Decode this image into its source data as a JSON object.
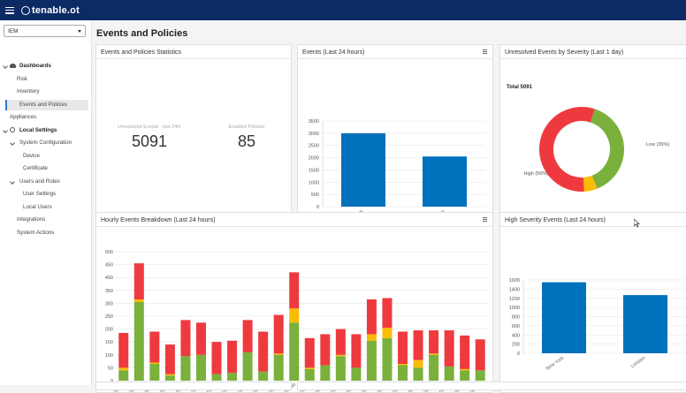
{
  "brand": {
    "name": "tenable.ot"
  },
  "sidebar": {
    "site_select": "IEM",
    "items": [
      {
        "label": "Dashboards"
      },
      {
        "label": "Risk"
      },
      {
        "label": "Inventory"
      },
      {
        "label": "Events and Policies"
      },
      {
        "label": "Appliances"
      },
      {
        "label": "Local Settings"
      },
      {
        "label": "System Configuration"
      },
      {
        "label": "Device"
      },
      {
        "label": "Certificate"
      },
      {
        "label": "Users and Roles"
      },
      {
        "label": "User Settings"
      },
      {
        "label": "Local Users"
      },
      {
        "label": "Integrations"
      },
      {
        "label": "System Actions"
      }
    ]
  },
  "page": {
    "title": "Events and Policies"
  },
  "stats_card": {
    "title": "Events and Policies Statistics",
    "unresolved_label": "Unresolved Events - last 24hr",
    "unresolved_value": "5091",
    "enabled_label": "Enabled Policies",
    "enabled_value": "85"
  },
  "events_card": {
    "title": "Events (Last 24 hours)"
  },
  "severity_card": {
    "title": "Unresolved Events by Severity (Last 1 day)",
    "total": "Total 5091",
    "label_low": "Low (39%)",
    "label_high": "High (56%)"
  },
  "hourly_card": {
    "title": "Hourly Events Breakdown (Last 24 hours)"
  },
  "high_card": {
    "title": "High Severity Events (Last 24 hours)"
  },
  "colors": {
    "blue": "#0071bc",
    "red": "#ee3a3f",
    "green": "#7ab03b",
    "yellow": "#fbbc05"
  },
  "chart_data": [
    {
      "type": "bar",
      "title": "Events (Last 24 hours)",
      "categories": [
        "New York",
        "London"
      ],
      "values": [
        3000,
        2050
      ],
      "ylim": [
        0,
        3500
      ],
      "yticks": [
        0,
        500,
        1000,
        1500,
        2000,
        2500,
        3000,
        3500
      ]
    },
    {
      "type": "pie",
      "title": "Unresolved Events by Severity (Last 1 day)",
      "labels": [
        "Low",
        "Medium",
        "High"
      ],
      "values": [
        39,
        5,
        56
      ]
    },
    {
      "type": "bar",
      "stacked": true,
      "title": "Hourly Events Breakdown (Last 24 hours)",
      "categories": [
        "08:00 PM",
        "09:00 PM",
        "10:00 PM",
        "11:00 PM",
        "12:00 AM",
        "01:00 AM",
        "02:00 AM",
        "03:00 AM",
        "04:00 AM",
        "05:00 AM",
        "06:00 AM",
        "07:00 AM",
        "08:00 AM",
        "09:00 AM",
        "10:00 AM",
        "11:00 AM",
        "12:00 PM",
        "01:00 PM",
        "02:00 PM",
        "03:00 PM",
        "04:00 PM",
        "05:00 PM",
        "06:00 PM",
        "07:00 PM"
      ],
      "series": [
        {
          "values": [
            40,
            305,
            65,
            20,
            95,
            100,
            25,
            30,
            110,
            35,
            100,
            225,
            45,
            60,
            95,
            50,
            155,
            165,
            60,
            50,
            100,
            55,
            40,
            40
          ]
        },
        {
          "values": [
            10,
            10,
            5,
            5,
            0,
            0,
            0,
            0,
            0,
            0,
            5,
            55,
            5,
            0,
            5,
            0,
            25,
            40,
            5,
            30,
            5,
            0,
            5,
            0
          ]
        },
        {
          "values": [
            135,
            140,
            120,
            115,
            140,
            125,
            125,
            125,
            125,
            155,
            150,
            140,
            115,
            120,
            100,
            130,
            135,
            115,
            125,
            115,
            90,
            140,
            130,
            120
          ]
        }
      ],
      "ylim": [
        0,
        500
      ],
      "yticks": [
        0,
        50,
        100,
        150,
        200,
        250,
        300,
        350,
        400,
        450,
        500
      ]
    },
    {
      "type": "bar",
      "title": "High Severity Events (Last 24 hours)",
      "categories": [
        "New York",
        "London"
      ],
      "values": [
        1550,
        1270
      ],
      "ylim": [
        0,
        1600
      ],
      "yticks": [
        0,
        200,
        400,
        600,
        800,
        1000,
        1200,
        1400,
        1600
      ]
    }
  ]
}
